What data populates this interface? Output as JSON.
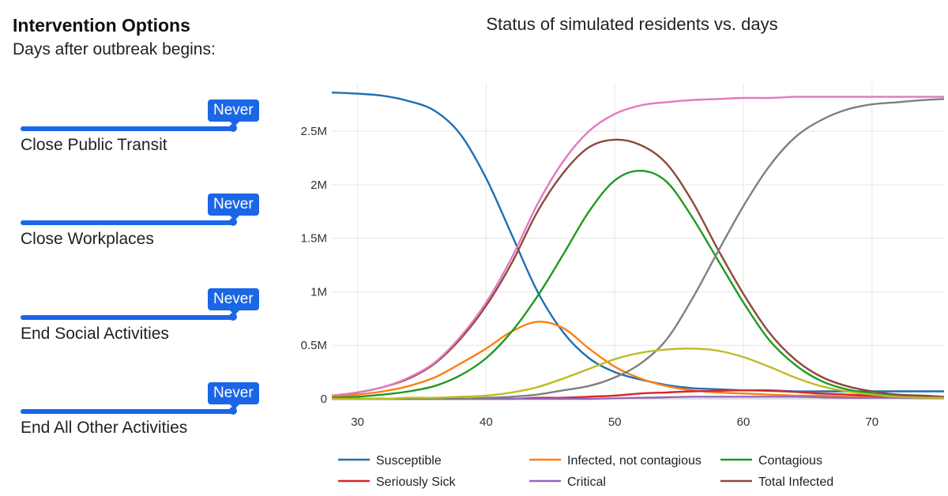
{
  "panel": {
    "title": "Intervention Options",
    "subtitle": "Days after outbreak begins:",
    "sliders": [
      {
        "label": "Close Public Transit",
        "value": "Never",
        "accent": "#1a66e6"
      },
      {
        "label": "Close Workplaces",
        "value": "Never",
        "accent": "#1a66e6"
      },
      {
        "label": "End Social Activities",
        "value": "Never",
        "accent": "#1a66e6"
      },
      {
        "label": "End All Other Activities",
        "value": "Never",
        "accent": "#1a66e6"
      }
    ]
  },
  "chart_data": {
    "type": "line",
    "title": "Status of simulated residents vs. days",
    "xlabel": "",
    "ylabel": "",
    "xlim": [
      28,
      75.6
    ],
    "ylim": [
      0,
      2.95
    ],
    "xticks": [
      30,
      40,
      50,
      60,
      70
    ],
    "yticks": [
      0,
      0.5,
      1,
      1.5,
      2,
      2.5
    ],
    "ytick_labels": [
      "0",
      "0.5M",
      "1M",
      "1.5M",
      "2M",
      "2.5M"
    ],
    "grid": true,
    "legend_position": "bottom",
    "x": [
      28,
      30,
      32,
      34,
      36,
      38,
      40,
      42,
      44,
      46,
      48,
      50,
      52,
      54,
      56,
      58,
      60,
      62,
      64,
      66,
      68,
      70,
      72,
      74,
      75.6
    ],
    "series": [
      {
        "name": "Susceptible",
        "color": "#1f6fb4",
        "values": [
          2.86,
          2.85,
          2.83,
          2.78,
          2.69,
          2.47,
          2.06,
          1.53,
          1.0,
          0.62,
          0.38,
          0.25,
          0.18,
          0.13,
          0.1,
          0.09,
          0.08,
          0.08,
          0.07,
          0.07,
          0.07,
          0.07,
          0.07,
          0.07,
          0.07
        ]
      },
      {
        "name": "Infected, not contagious",
        "color": "#ff7f0e",
        "values": [
          0.02,
          0.04,
          0.07,
          0.12,
          0.2,
          0.33,
          0.47,
          0.63,
          0.72,
          0.66,
          0.47,
          0.3,
          0.19,
          0.12,
          0.08,
          0.06,
          0.05,
          0.04,
          0.03,
          0.03,
          0.02,
          0.02,
          0.02,
          0.02,
          0.02
        ]
      },
      {
        "name": "Contagious",
        "color": "#1f9a1f",
        "values": [
          0.01,
          0.02,
          0.04,
          0.07,
          0.12,
          0.22,
          0.38,
          0.63,
          0.96,
          1.35,
          1.75,
          2.04,
          2.13,
          2.03,
          1.7,
          1.3,
          0.9,
          0.55,
          0.32,
          0.17,
          0.09,
          0.05,
          0.03,
          0.02,
          0.01
        ]
      },
      {
        "name": "Seriously Sick",
        "color": "#d62728",
        "values": [
          0,
          0,
          0,
          0,
          0,
          0,
          0,
          0,
          0.01,
          0.01,
          0.02,
          0.03,
          0.05,
          0.06,
          0.07,
          0.075,
          0.08,
          0.075,
          0.065,
          0.05,
          0.04,
          0.03,
          0.02,
          0.01,
          0.01
        ]
      },
      {
        "name": "Critical",
        "color": "#9467bd",
        "values": [
          0,
          0,
          0,
          0,
          0,
          0,
          0,
          0,
          0,
          0,
          0,
          0.005,
          0.01,
          0.015,
          0.02,
          0.02,
          0.02,
          0.02,
          0.02,
          0.015,
          0.01,
          0.01,
          0.01,
          0.005,
          0.005
        ]
      },
      {
        "name": "Total Infected",
        "color": "#8c4a3c",
        "values": [
          0.03,
          0.06,
          0.11,
          0.19,
          0.33,
          0.56,
          0.87,
          1.27,
          1.75,
          2.11,
          2.35,
          2.42,
          2.37,
          2.2,
          1.85,
          1.4,
          0.98,
          0.62,
          0.37,
          0.21,
          0.12,
          0.07,
          0.04,
          0.03,
          0.02
        ]
      },
      {
        "name": "",
        "color": "#e377c2",
        "values": [
          0.03,
          0.06,
          0.11,
          0.2,
          0.34,
          0.58,
          0.9,
          1.32,
          1.82,
          2.22,
          2.5,
          2.66,
          2.74,
          2.77,
          2.79,
          2.8,
          2.81,
          2.81,
          2.82,
          2.82,
          2.82,
          2.82,
          2.82,
          2.82,
          2.82
        ]
      },
      {
        "name": "",
        "color": "#7f7f7f",
        "values": [
          0,
          0,
          0,
          0,
          0,
          0,
          0.01,
          0.02,
          0.04,
          0.08,
          0.12,
          0.2,
          0.33,
          0.55,
          0.93,
          1.37,
          1.8,
          2.17,
          2.44,
          2.6,
          2.7,
          2.75,
          2.77,
          2.79,
          2.8
        ]
      },
      {
        "name": "",
        "color": "#bcbd22",
        "values": [
          0,
          0,
          0,
          0.01,
          0.01,
          0.02,
          0.03,
          0.06,
          0.11,
          0.19,
          0.28,
          0.37,
          0.43,
          0.46,
          0.47,
          0.45,
          0.39,
          0.3,
          0.2,
          0.12,
          0.07,
          0.04,
          0.02,
          0.01,
          0.01
        ]
      }
    ]
  }
}
